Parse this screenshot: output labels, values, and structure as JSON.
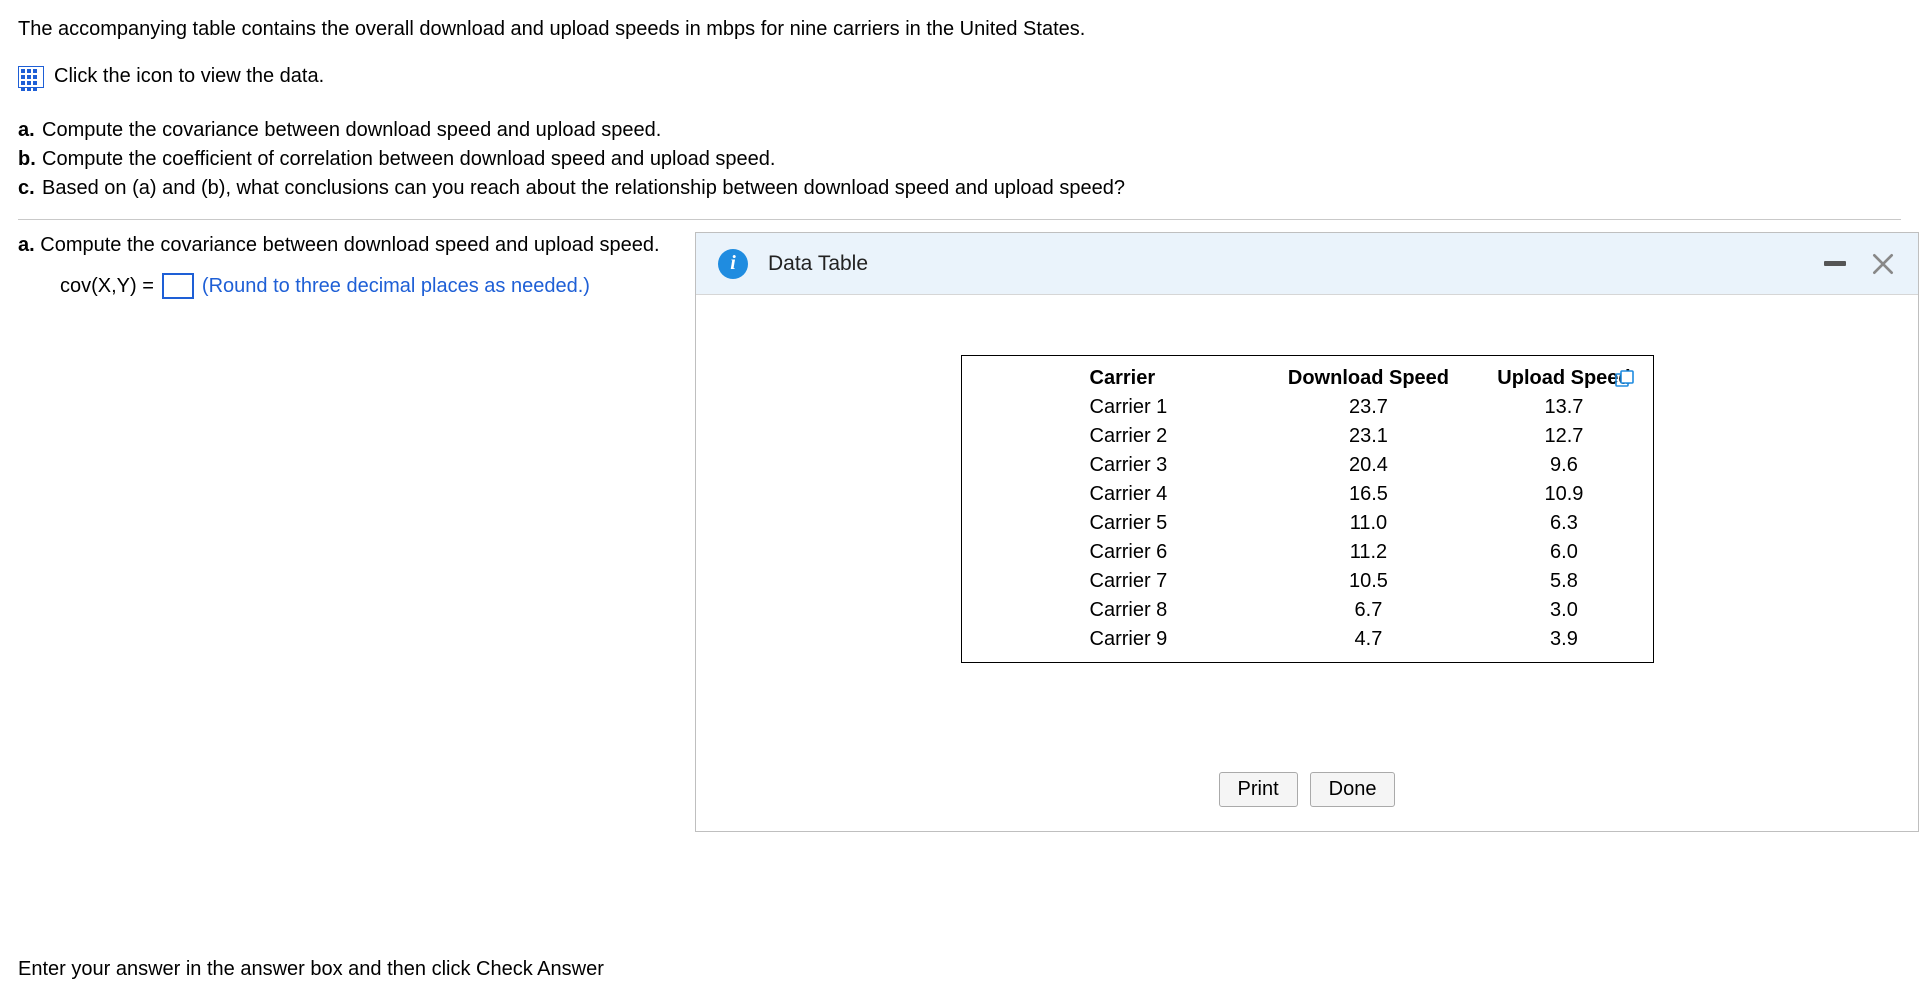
{
  "intro": "The accompanying table contains the overall download and upload speeds in mbps for nine carriers in the United States.",
  "iconRowText": "Click the icon to view the data.",
  "questions": {
    "a": "Compute the covariance between download speed and upload speed.",
    "b": "Compute the coefficient of correlation between download speed and upload speed.",
    "c": "Based on (a) and (b), what conclusions can you reach about the relationship between download speed and upload speed?"
  },
  "sub": {
    "label": "a.",
    "text": "Compute the covariance between download speed and upload speed."
  },
  "answer": {
    "lhs": "cov(X,Y) =",
    "hint": "(Round to three decimal places as needed.)"
  },
  "modal": {
    "title": "Data Table",
    "headers": [
      "Carrier",
      "Download Speed",
      "Upload Speed"
    ],
    "rows": [
      [
        "Carrier 1",
        "23.7",
        "13.7"
      ],
      [
        "Carrier 2",
        "23.1",
        "12.7"
      ],
      [
        "Carrier 3",
        "20.4",
        "9.6"
      ],
      [
        "Carrier 4",
        "16.5",
        "10.9"
      ],
      [
        "Carrier 5",
        "11.0",
        "6.3"
      ],
      [
        "Carrier 6",
        "11.2",
        "6.0"
      ],
      [
        "Carrier 7",
        "10.5",
        "5.8"
      ],
      [
        "Carrier 8",
        "6.7",
        "3.0"
      ],
      [
        "Carrier 9",
        "4.7",
        "3.9"
      ]
    ],
    "printLabel": "Print",
    "doneLabel": "Done"
  },
  "bottomCut": "Enter your answer in the answer box and then click Check Answer"
}
